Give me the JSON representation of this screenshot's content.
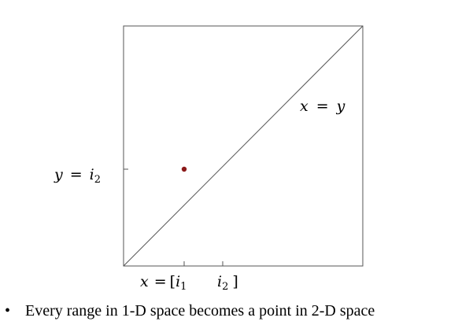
{
  "diagram": {
    "diagonal_label_lhs": "x",
    "diagonal_label_op": "=",
    "diagonal_label_rhs": "y",
    "y_tick_label_var": "y",
    "y_tick_label_op": "=",
    "y_tick_label_sym": "i",
    "y_tick_label_sub": "2",
    "x_label_var": "x",
    "x_label_op": "=",
    "x_label_open": "[",
    "x_tick1_sym": "i",
    "x_tick1_sub": "1",
    "x_tick2_sym": "i",
    "x_tick2_sub": "2",
    "x_label_close": "]",
    "point_color": "#8b1a1a"
  },
  "bullet": {
    "marker": "•",
    "text": "Every range in 1-D space becomes a point in 2-D space"
  }
}
